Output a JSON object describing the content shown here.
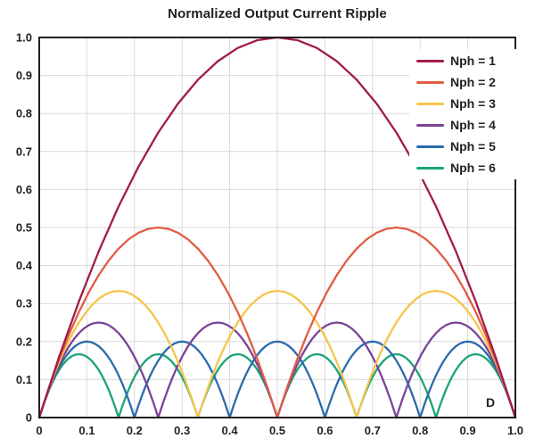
{
  "page": {
    "background": "#ffffff",
    "text_color": "#231f20"
  },
  "chart_data": {
    "type": "line",
    "title": "Normalized Output Current Ripple",
    "xlabel": "D",
    "ylabel": "",
    "xlim": [
      0,
      1
    ],
    "ylim": [
      0,
      1
    ],
    "x_ticks": [
      "0",
      "0.1",
      "0.2",
      "0.3",
      "0.4",
      "0.5",
      "0.6",
      "0.7",
      "0.8",
      "0.9",
      "1.0"
    ],
    "y_ticks": [
      "0",
      "0.1",
      "0.2",
      "0.3",
      "0.4",
      "0.5",
      "0.6",
      "0.7",
      "0.8",
      "0.9",
      "1.0"
    ],
    "grid": true,
    "grid_color": "#d8d9da",
    "axis_color": "#231f20",
    "legend_position": "top-right-inside",
    "formula": "ripple(D, N) = 4*N*(D - m/N)*((m+1)/N - D), with m = floor(N*D)",
    "series": [
      {
        "label": "Nph = 1",
        "n": 1,
        "color": "#A11C44",
        "peak": 1.0,
        "peak_at": [
          0.5
        ],
        "zeros": [
          0,
          1
        ]
      },
      {
        "label": "Nph = 2",
        "n": 2,
        "color": "#E25B44",
        "peak": 0.5,
        "peak_at": [
          0.25,
          0.75
        ],
        "zeros": [
          0,
          0.5,
          1
        ]
      },
      {
        "label": "Nph = 3",
        "n": 3,
        "color": "#F6C54B",
        "peak": 0.333,
        "peak_at": [
          0.167,
          0.5,
          0.833
        ],
        "zeros": [
          0,
          0.333,
          0.667,
          1
        ]
      },
      {
        "label": "Nph = 4",
        "n": 4,
        "color": "#7B4398",
        "peak": 0.25,
        "peak_at": [
          0.125,
          0.375,
          0.625,
          0.875
        ],
        "zeros": [
          0,
          0.25,
          0.5,
          0.75,
          1
        ]
      },
      {
        "label": "Nph = 5",
        "n": 5,
        "color": "#2A6BAB",
        "peak": 0.2,
        "peak_at": [
          0.1,
          0.3,
          0.5,
          0.7,
          0.9
        ],
        "zeros": [
          0,
          0.2,
          0.4,
          0.6,
          0.8,
          1
        ]
      },
      {
        "label": "Nph = 6",
        "n": 6,
        "color": "#1CA377",
        "peak": 0.167,
        "peak_at": [
          0.083,
          0.25,
          0.417,
          0.583,
          0.75,
          0.917
        ],
        "zeros": [
          0,
          0.167,
          0.333,
          0.5,
          0.667,
          0.833,
          1
        ]
      }
    ]
  }
}
